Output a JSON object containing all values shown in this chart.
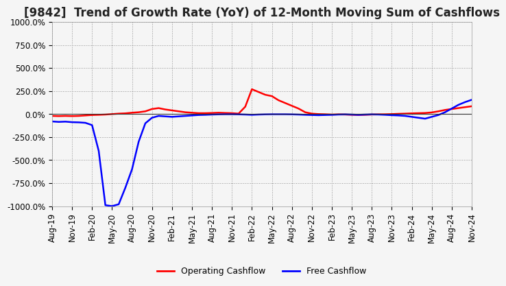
{
  "title": "[9842]  Trend of Growth Rate (YoY) of 12-Month Moving Sum of Cashflows",
  "ylim": [
    -1000,
    1000
  ],
  "yticks": [
    -1000,
    -750,
    -500,
    -250,
    0,
    250,
    500,
    750,
    1000
  ],
  "ytick_labels": [
    "-1000.0%",
    "-750.0%",
    "-500.0%",
    "-250.0%",
    "0.0%",
    "250.0%",
    "500.0%",
    "750.0%",
    "1000.0%"
  ],
  "legend_labels": [
    "Operating Cashflow",
    "Free Cashflow"
  ],
  "legend_colors": [
    "red",
    "blue"
  ],
  "operating_cashflow": {
    "values": [
      -20,
      -22,
      -20,
      -22,
      -20,
      -15,
      -10,
      -8,
      -5,
      0,
      5,
      8,
      15,
      20,
      30,
      55,
      65,
      50,
      40,
      30,
      20,
      15,
      10,
      10,
      12,
      15,
      12,
      10,
      5,
      80,
      270,
      240,
      210,
      195,
      150,
      120,
      90,
      60,
      20,
      5,
      0,
      -2,
      -5,
      -3,
      -5,
      -8,
      -10,
      -8,
      -5,
      -3,
      -2,
      0,
      3,
      5,
      8,
      10,
      12,
      18,
      30,
      45,
      55,
      65,
      75,
      85
    ]
  },
  "free_cashflow": {
    "values": [
      -80,
      -85,
      -82,
      -88,
      -90,
      -95,
      -120,
      -400,
      -990,
      -1000,
      -980,
      -800,
      -600,
      -300,
      -100,
      -40,
      -20,
      -25,
      -30,
      -25,
      -20,
      -15,
      -10,
      -8,
      -5,
      -3,
      -2,
      -2,
      -3,
      -5,
      -8,
      -5,
      -3,
      -2,
      -2,
      -2,
      -3,
      -5,
      -8,
      -10,
      -12,
      -10,
      -8,
      -5,
      -3,
      -5,
      -8,
      -5,
      -3,
      -5,
      -8,
      -12,
      -15,
      -20,
      -30,
      -40,
      -50,
      -30,
      -10,
      20,
      60,
      100,
      130,
      155
    ]
  },
  "xtick_positions": [
    0,
    3,
    6,
    9,
    12,
    15,
    18,
    21,
    24,
    27,
    30,
    33,
    36,
    39,
    42,
    45,
    48,
    51,
    54,
    57,
    60,
    63
  ],
  "xtick_labels": [
    "Aug-19",
    "Nov-19",
    "Feb-20",
    "May-20",
    "Aug-20",
    "Nov-20",
    "Feb-21",
    "May-21",
    "Aug-21",
    "Nov-21",
    "Feb-22",
    "May-22",
    "Aug-22",
    "Nov-22",
    "Feb-23",
    "May-23",
    "Aug-23",
    "Nov-23",
    "Feb-24",
    "May-24",
    "Aug-24",
    "Nov-24"
  ],
  "background_color": "#f5f5f5",
  "plot_bg_color": "#f5f5f5",
  "grid_color": "#888888",
  "title_fontsize": 12,
  "tick_fontsize": 8.5,
  "line_width": 1.8
}
